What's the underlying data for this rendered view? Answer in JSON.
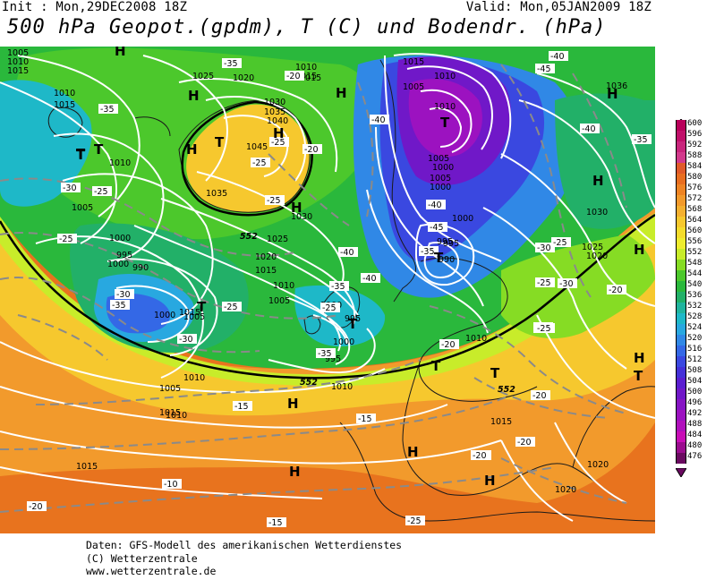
{
  "header": {
    "init_text": "Init : Mon,29DEC2008 18Z",
    "valid_text": "Valid: Mon,05JAN2009 18Z",
    "title": "500 hPa Geopot.(gpdm), T (C) und Bodendr. (hPa)"
  },
  "legend": {
    "values": [
      "600",
      "596",
      "592",
      "588",
      "584",
      "580",
      "576",
      "572",
      "568",
      "564",
      "560",
      "556",
      "552",
      "548",
      "544",
      "540",
      "536",
      "532",
      "528",
      "524",
      "520",
      "516",
      "512",
      "508",
      "504",
      "500",
      "496",
      "492",
      "488",
      "484",
      "480",
      "476"
    ],
    "colors": [
      "#b8005a",
      "#c0106a",
      "#c8267c",
      "#d23a8c",
      "#e05a2a",
      "#e86e20",
      "#ee8424",
      "#f29a2c",
      "#f4b030",
      "#f6c82e",
      "#f4dc2c",
      "#eeec2e",
      "#c8ec2a",
      "#86dc24",
      "#4cc82c",
      "#2ab83c",
      "#22b068",
      "#20b49e",
      "#1eb8c8",
      "#28a8e0",
      "#3088e6",
      "#3468e6",
      "#3a48e0",
      "#4430d8",
      "#5a1ed0",
      "#7018c8",
      "#8614c4",
      "#9c12c0",
      "#b010bc",
      "#c80eb6",
      "#9a0c8e",
      "#6a0a60"
    ]
  },
  "map": {
    "colors": {
      "orange_deep": "#e8731e",
      "orange": "#f29a2c",
      "yellow": "#f6c82e",
      "light_yellow": "#eeec2e",
      "lime": "#86dc24",
      "green": "#2ab83c",
      "teal": "#22b068",
      "cyan": "#1eb8c8",
      "blue": "#3088e6",
      "dark_blue": "#3a48e0",
      "violet": "#7018c8",
      "purple": "#9c12c0"
    },
    "pressure_labels": [
      "1005",
      "1010",
      "1015",
      "1010",
      "1015",
      "1025",
      "1020",
      "1015",
      "1010",
      "1015",
      "1030",
      "1035",
      "1040",
      "1045",
      "1010",
      "1005",
      "1035",
      "1030",
      "1025",
      "1020",
      "1015",
      "1010",
      "1005",
      "1000",
      "1000",
      "995",
      "990",
      "1005",
      "1000",
      "995",
      "1000",
      "995",
      "1000",
      "1005",
      "1000",
      "1005",
      "1010",
      "1015",
      "1010",
      "1005",
      "1000",
      "995",
      "990",
      "1010",
      "1005",
      "1000",
      "995",
      "1036",
      "1030",
      "1020",
      "1025",
      "1010",
      "1015",
      "1020",
      "1015",
      "1010",
      "1015",
      "1010",
      "1015",
      "1020"
    ],
    "temp_labels": [
      "-35",
      "-35",
      "-20",
      "-25",
      "-20",
      "-25",
      "-25",
      "-30",
      "-25",
      "-25",
      "-30",
      "-35",
      "-25",
      "-30",
      "-25",
      "-35",
      "-40",
      "-35",
      "-40",
      "-45",
      "-40",
      "-40",
      "-35",
      "-30",
      "-25",
      "-25",
      "-20",
      "-20",
      "-20",
      "-20",
      "-15",
      "-15",
      "-15",
      "-10",
      "-40",
      "-45",
      "-40",
      "-35",
      "-30",
      "-25",
      "-20",
      "-20",
      "-25",
      "-20",
      "-15",
      "-25",
      "-20"
    ],
    "high_symbol": "H",
    "low_symbol": "T",
    "contour_552": "552"
  },
  "footer": {
    "line1": "Daten: GFS-Modell des amerikanischen Wetterdienstes",
    "line2": "(C) Wetterzentrale",
    "line3": "www.wetterzentrale.de"
  }
}
